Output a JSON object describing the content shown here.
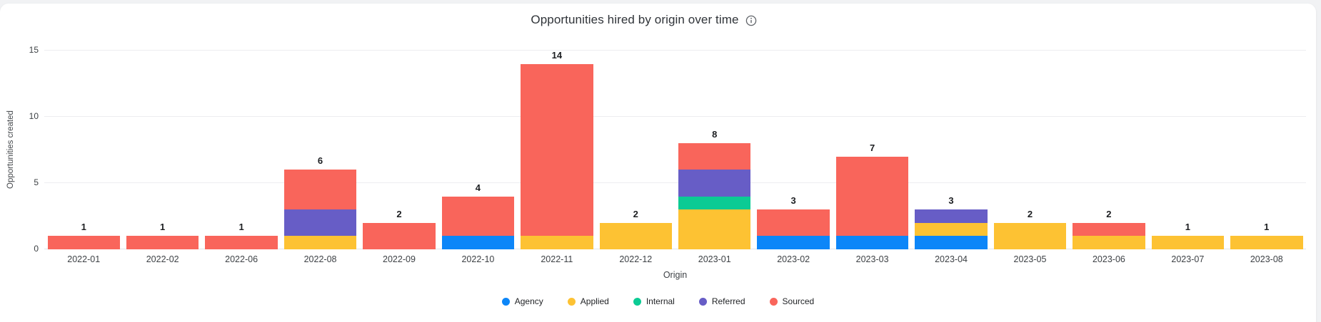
{
  "page": {
    "background": "#f1f2f4",
    "card_background": "#ffffff"
  },
  "header": {
    "title": "Opportunities hired by origin over time",
    "info_icon": "info-icon",
    "info_icon_color": "#5f6368"
  },
  "chart_data": {
    "type": "bar",
    "stacked": true,
    "title": "Opportunities hired by origin over time",
    "xlabel": "Origin",
    "ylabel": "Opportunities created",
    "ylim": [
      0,
      15
    ],
    "yticks": [
      0,
      5,
      10,
      15
    ],
    "grid": true,
    "legend_position": "bottom",
    "categories": [
      "2022-01",
      "2022-02",
      "2022-06",
      "2022-08",
      "2022-09",
      "2022-10",
      "2022-11",
      "2022-12",
      "2023-01",
      "2023-02",
      "2023-03",
      "2023-04",
      "2023-05",
      "2023-06",
      "2023-07",
      "2023-08"
    ],
    "series": [
      {
        "name": "Agency",
        "color": "#0d86f8",
        "values": [
          0,
          0,
          0,
          0,
          0,
          1,
          0,
          0,
          0,
          1,
          1,
          1,
          0,
          0,
          0,
          0
        ]
      },
      {
        "name": "Applied",
        "color": "#fdc233",
        "values": [
          0,
          0,
          0,
          1,
          0,
          0,
          1,
          2,
          3,
          0,
          0,
          1,
          2,
          1,
          1,
          1
        ]
      },
      {
        "name": "Internal",
        "color": "#0bcb94",
        "values": [
          0,
          0,
          0,
          0,
          0,
          0,
          0,
          0,
          1,
          0,
          0,
          0,
          0,
          0,
          0,
          0
        ]
      },
      {
        "name": "Referred",
        "color": "#675dc6",
        "values": [
          0,
          0,
          0,
          2,
          0,
          0,
          0,
          0,
          2,
          0,
          0,
          1,
          0,
          0,
          0,
          0
        ]
      },
      {
        "name": "Sourced",
        "color": "#f9655b",
        "values": [
          1,
          1,
          1,
          3,
          2,
          3,
          13,
          0,
          2,
          2,
          6,
          0,
          0,
          1,
          0,
          0
        ]
      }
    ],
    "totals": [
      1,
      1,
      1,
      6,
      2,
      4,
      14,
      2,
      8,
      3,
      7,
      3,
      2,
      2,
      1,
      1
    ]
  }
}
